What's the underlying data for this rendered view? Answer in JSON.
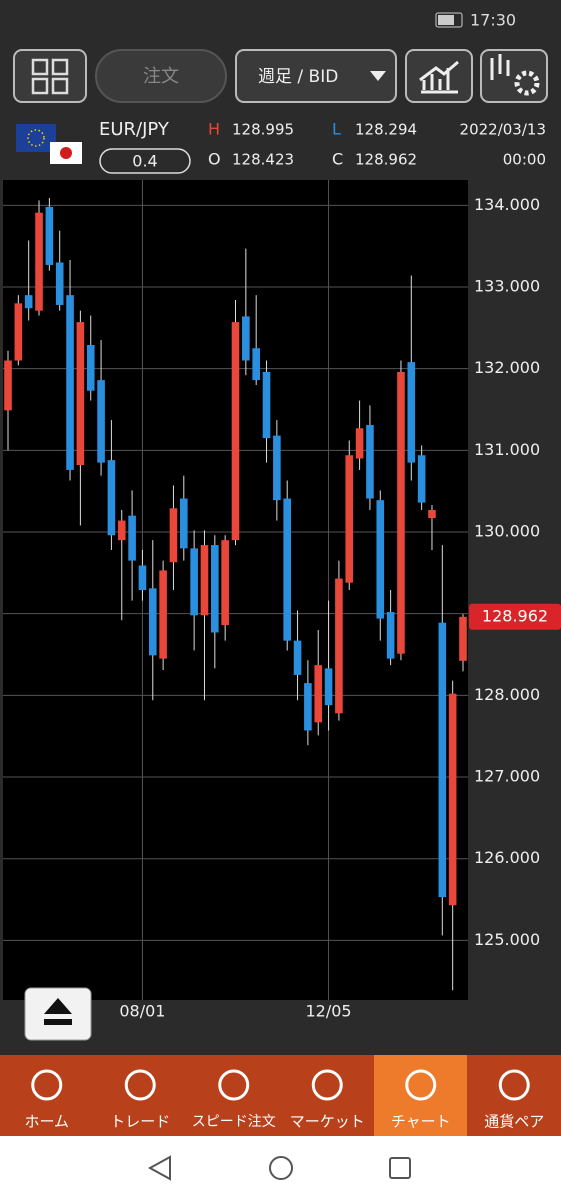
{
  "status_bar": {
    "time": "17:30"
  },
  "toolbar": {
    "order_button": "注文",
    "timeframe": "週足 / BID"
  },
  "quote": {
    "symbol": "EUR/JPY",
    "spread": "0.4",
    "high_label": "H",
    "high": "128.995",
    "low_label": "L",
    "low": "128.294",
    "open_label": "O",
    "open": "128.423",
    "close_label": "C",
    "close": "128.962",
    "date": "2022/03/13",
    "time": "00:00"
  },
  "chart_data": {
    "type": "candlestick",
    "up_color": "#e8473a",
    "down_color": "#2b8fe0",
    "grid": true,
    "ylim": [
      124.27,
      134.31
    ],
    "yticks": [
      {
        "value": 125,
        "label": "125.000"
      },
      {
        "value": 126,
        "label": "126.000"
      },
      {
        "value": 127,
        "label": "127.000"
      },
      {
        "value": 128,
        "label": "128.000"
      },
      {
        "value": 129,
        "label": "129.000"
      },
      {
        "value": 130,
        "label": "130.000"
      },
      {
        "value": 131,
        "label": "131.000"
      },
      {
        "value": 132,
        "label": "132.000"
      },
      {
        "value": 133,
        "label": "133.000"
      },
      {
        "value": 134,
        "label": "134.000"
      }
    ],
    "price_tag": "128.962",
    "categories": [
      null,
      null,
      null,
      null,
      null,
      null,
      null,
      null,
      null,
      null,
      null,
      null,
      null,
      "08/01",
      null,
      null,
      null,
      null,
      null,
      null,
      null,
      null,
      null,
      null,
      null,
      null,
      null,
      null,
      null,
      null,
      null,
      "12/05",
      null,
      null,
      null,
      null,
      null,
      null,
      null,
      null,
      null,
      null,
      null,
      null,
      null
    ],
    "open": [
      131.49,
      132.1,
      132.9,
      132.71,
      133.98,
      133.3,
      132.9,
      130.82,
      132.29,
      131.86,
      130.88,
      129.9,
      130.2,
      129.59,
      129.31,
      128.45,
      129.63,
      130.41,
      129.8,
      128.98,
      129.84,
      128.86,
      129.9,
      132.64,
      132.25,
      131.96,
      131.18,
      130.41,
      128.67,
      128.15,
      127.67,
      128.33,
      127.78,
      129.38,
      130.9,
      131.31,
      130.39,
      129.02,
      128.51,
      132.08,
      130.94,
      130.17,
      128.89,
      125.43,
      128.423
    ],
    "high": [
      132.22,
      132.9,
      133.57,
      134.06,
      134.09,
      133.69,
      133.33,
      132.71,
      132.65,
      132.35,
      131.37,
      130.27,
      130.51,
      129.78,
      129.9,
      129.65,
      130.57,
      130.69,
      130.02,
      130.02,
      129.96,
      129.96,
      132.84,
      133.47,
      132.9,
      132.1,
      131.37,
      130.63,
      129.04,
      128.43,
      128.8,
      129.16,
      129.65,
      131.12,
      131.61,
      131.55,
      130.51,
      129.29,
      132.1,
      133.14,
      131.06,
      130.33,
      129.84,
      128.18,
      128.995
    ],
    "low": [
      131.0,
      132.04,
      132.59,
      132.65,
      133.2,
      132.71,
      130.63,
      130.08,
      131.61,
      130.69,
      129.78,
      128.92,
      129.16,
      129.16,
      127.94,
      128.31,
      129.29,
      129.65,
      128.55,
      127.94,
      128.33,
      128.67,
      129.84,
      131.92,
      131.8,
      130.85,
      130.14,
      128.55,
      127.94,
      127.39,
      127.51,
      127.57,
      127.69,
      129.29,
      130.76,
      130.27,
      128.67,
      128.37,
      128.43,
      130.63,
      130.27,
      129.78,
      125.06,
      124.39,
      128.294
    ],
    "close": [
      132.1,
      132.8,
      132.74,
      133.91,
      133.27,
      132.78,
      130.76,
      132.57,
      131.73,
      130.85,
      129.96,
      130.14,
      129.65,
      129.29,
      128.49,
      129.53,
      130.29,
      129.8,
      128.98,
      129.84,
      128.77,
      129.9,
      132.57,
      132.1,
      131.86,
      131.15,
      130.39,
      128.67,
      128.25,
      127.57,
      128.37,
      127.88,
      129.43,
      130.94,
      131.27,
      130.41,
      128.94,
      128.45,
      131.96,
      130.85,
      130.36,
      130.27,
      125.53,
      128.02,
      128.962
    ]
  },
  "nav": {
    "items": [
      "ホーム",
      "トレード",
      "スピード注文",
      "マーケット",
      "チャート",
      "通貨ペア"
    ]
  }
}
